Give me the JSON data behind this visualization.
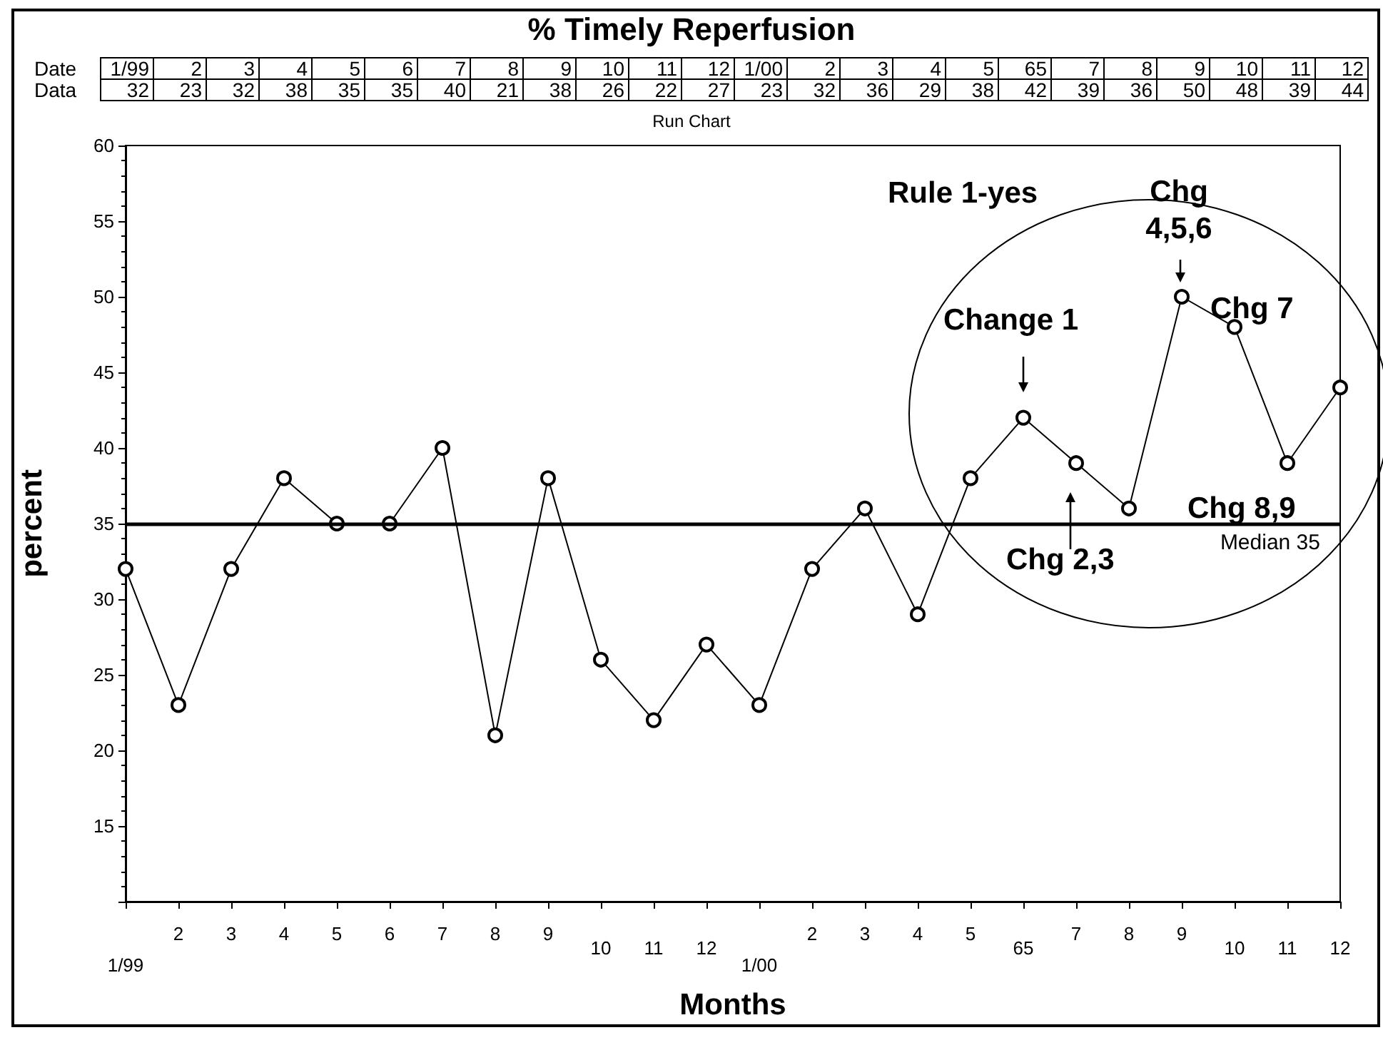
{
  "chart_data": {
    "type": "line",
    "title": "% Timely Reperfusion",
    "subtitle": "Run Chart",
    "xlabel": "Months",
    "ylabel": "percent",
    "categories": [
      "1/99",
      "2",
      "3",
      "4",
      "5",
      "6",
      "7",
      "8",
      "9",
      "10",
      "11",
      "12",
      "1/00",
      "2",
      "3",
      "4",
      "5",
      "65",
      "7",
      "8",
      "9",
      "10",
      "11",
      "12"
    ],
    "series": [
      {
        "color": "#000000",
        "values": [
          32,
          23,
          32,
          38,
          35,
          35,
          40,
          21,
          38,
          26,
          22,
          27,
          23,
          32,
          36,
          29,
          38,
          42,
          39,
          36,
          50,
          48,
          39,
          44
        ]
      }
    ],
    "data_labels": true,
    "marker": "circle",
    "line_style": "solid",
    "ylim": [
      10,
      60
    ],
    "yticks": [
      {
        "value": 10,
        "label": null
      },
      15,
      20,
      25,
      30,
      35,
      40,
      45,
      50,
      55,
      60
    ],
    "ref_lines": [
      {
        "axis": "y",
        "value": 35,
        "label": "Median 35",
        "color": "#000000"
      }
    ],
    "annotations": [
      "Date",
      "Data",
      "Rule 1-yes",
      "Change 1",
      "Chg 2,3",
      "Chg 4,5,6",
      "Chg 7",
      "Chg 8,9"
    ]
  }
}
